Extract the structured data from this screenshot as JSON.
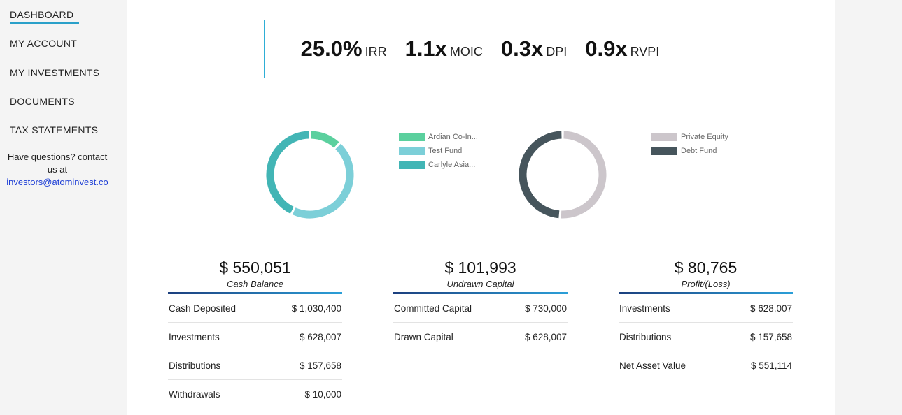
{
  "sidebar": {
    "items": [
      {
        "label": "DASHBOARD"
      },
      {
        "label": "MY ACCOUNT"
      },
      {
        "label": "MY INVESTMENTS"
      },
      {
        "label": "DOCUMENTS"
      },
      {
        "label": "TAX STATEMENTS"
      }
    ],
    "help_text": "Have questions? contact us at",
    "help_email": "investors@atominvest.co"
  },
  "metrics": [
    {
      "value": "25.0%",
      "label": "IRR"
    },
    {
      "value": "1.1x",
      "label": "MOIC"
    },
    {
      "value": "0.3x",
      "label": "DPI"
    },
    {
      "value": "0.9x",
      "label": "RVPI"
    }
  ],
  "chart_data": [
    {
      "type": "pie",
      "categories": [
        "Ardian Co-In...",
        "Test Fund",
        "Carlyle Asia..."
      ],
      "values": [
        12,
        45,
        43
      ],
      "colors": [
        "#5bd09e",
        "#7ccfd8",
        "#42b5b5"
      ],
      "legend": "right"
    },
    {
      "type": "pie",
      "categories": [
        "Private Equity",
        "Debt Fund"
      ],
      "values": [
        51,
        49
      ],
      "colors": [
        "#ccc6cb",
        "#46555c"
      ],
      "legend": "right"
    }
  ],
  "cards": [
    {
      "amount": "$ 550,051",
      "caption": "Cash Balance",
      "rows": [
        {
          "label": "Cash Deposited",
          "value": "$ 1,030,400"
        },
        {
          "label": "Investments",
          "value": "$ 628,007"
        },
        {
          "label": "Distributions",
          "value": "$ 157,658"
        },
        {
          "label": "Withdrawals",
          "value": "$ 10,000"
        }
      ]
    },
    {
      "amount": "$ 101,993",
      "caption": "Undrawn Capital",
      "rows": [
        {
          "label": "Committed Capital",
          "value": "$ 730,000"
        },
        {
          "label": "Drawn Capital",
          "value": "$ 628,007"
        }
      ]
    },
    {
      "amount": "$ 80,765",
      "caption": "Profit/(Loss)",
      "rows": [
        {
          "label": "Investments",
          "value": "$ 628,007"
        },
        {
          "label": "Distributions",
          "value": "$ 157,658"
        },
        {
          "label": "Net Asset Value",
          "value": "$ 551,114"
        }
      ]
    }
  ]
}
